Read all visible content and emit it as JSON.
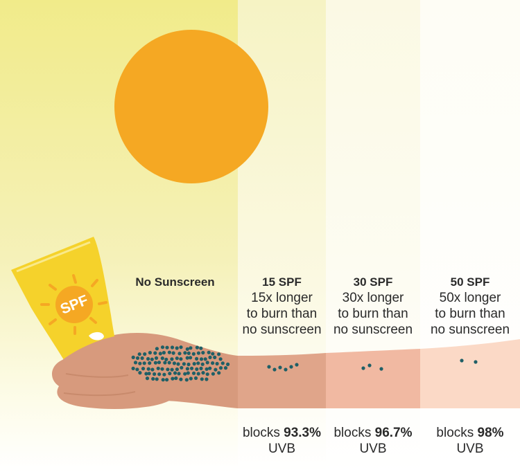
{
  "colors": {
    "sun": "#f5a823",
    "bottle": "#f5d22b",
    "skin": "#d79a7d",
    "freckles": "#1f5f66"
  },
  "bottle_text": "SPF",
  "columns": [
    {
      "heading": "No Sunscreen",
      "lines": []
    },
    {
      "heading": "15 SPF",
      "lines": [
        "15x longer",
        "to burn than",
        "no sunscreen"
      ]
    },
    {
      "heading": "30 SPF",
      "lines": [
        "30x longer",
        "to burn than",
        "no sunscreen"
      ]
    },
    {
      "heading": "50 SPF",
      "lines": [
        "50x longer",
        "to burn than",
        "no sunscreen"
      ]
    }
  ],
  "blocks": [
    {
      "prefix": "blocks ",
      "value": "93.3%",
      "suffix": "UVB"
    },
    {
      "prefix": "blocks ",
      "value": "96.7%",
      "suffix": "UVB"
    },
    {
      "prefix": "blocks ",
      "value": "98%",
      "suffix": "UVB"
    }
  ]
}
